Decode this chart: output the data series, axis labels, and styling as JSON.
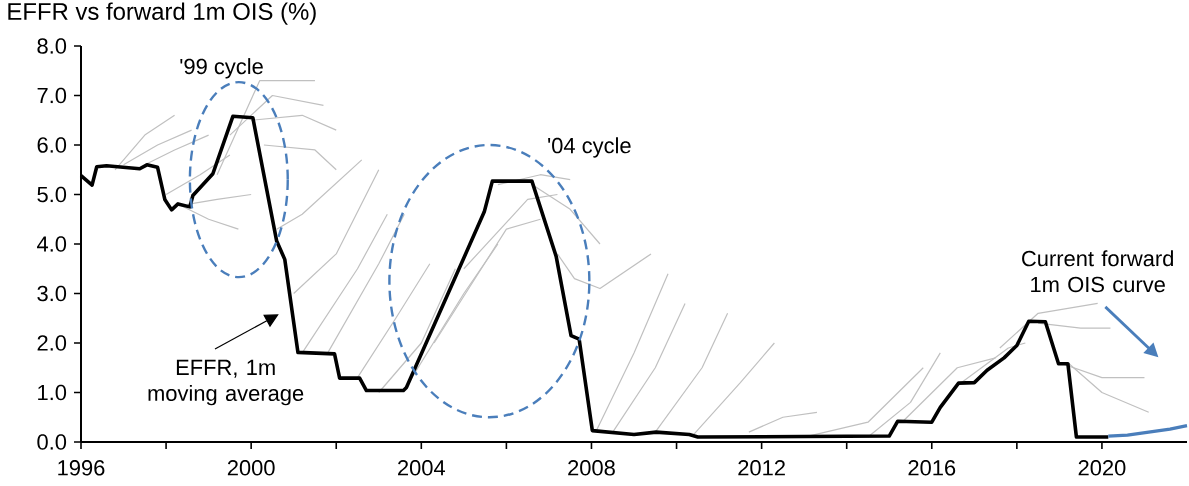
{
  "chart_data": {
    "type": "line",
    "title": "EFFR vs forward 1m OIS (%)",
    "annotations": [
      "'99 cycle",
      "'04 cycle",
      "EFFR, 1m moving average",
      "Current forward 1m OIS curve"
    ],
    "xlim": [
      1996,
      2022
    ],
    "ylim": [
      0,
      8
    ],
    "xticks": [
      1996,
      {
        "value": 1998,
        "label": null
      },
      2000,
      {
        "value": 2002,
        "label": null
      },
      2004,
      {
        "value": 2006,
        "label": null
      },
      2008,
      {
        "value": 2010,
        "label": null
      },
      2012,
      {
        "value": 2014,
        "label": null
      },
      2016,
      {
        "value": 2018,
        "label": null
      },
      2020
    ],
    "yticks": [
      {
        "value": 0,
        "label": "0.0"
      },
      {
        "value": 1,
        "label": "1.0"
      },
      {
        "value": 2,
        "label": "2.0"
      },
      {
        "value": 3,
        "label": "3.0"
      },
      {
        "value": 4,
        "label": "4.0"
      },
      {
        "value": 5,
        "label": "5.0"
      },
      {
        "value": 6,
        "label": "6.0"
      },
      {
        "value": 7,
        "label": "7.0"
      },
      {
        "value": 8,
        "label": "8.0"
      }
    ],
    "marker": "none",
    "series": [
      {
        "color": "#c0c0c0",
        "x": [
          1996.8,
          1997.5,
          1998.2
        ],
        "values": [
          5.5,
          6.2,
          6.6
        ]
      },
      {
        "color": "#c0c0c0",
        "x": [
          1997.0,
          1997.8,
          1998.6
        ],
        "values": [
          5.6,
          6.0,
          6.3
        ]
      },
      {
        "color": "#c0c0c0",
        "x": [
          1997.5,
          1998.2,
          1999.0
        ],
        "values": [
          5.6,
          5.9,
          6.2
        ]
      },
      {
        "color": "#c0c0c0",
        "x": [
          1998.0,
          1998.8,
          1999.5
        ],
        "values": [
          5.0,
          5.4,
          5.8
        ]
      },
      {
        "color": "#c0c0c0",
        "x": [
          1998.3,
          1999.0,
          1999.7
        ],
        "values": [
          4.8,
          4.5,
          4.3
        ]
      },
      {
        "color": "#c0c0c0",
        "x": [
          1998.5,
          1999.2,
          2000.0
        ],
        "values": [
          4.8,
          4.9,
          5.0
        ]
      },
      {
        "color": "#c0c0c0",
        "x": [
          1999.2,
          2000.2,
          2001.5
        ],
        "values": [
          5.4,
          7.3,
          7.3
        ]
      },
      {
        "color": "#c0c0c0",
        "x": [
          1999.5,
          2000.5,
          2001.7
        ],
        "values": [
          6.2,
          7.0,
          6.8
        ]
      },
      {
        "color": "#c0c0c0",
        "x": [
          2000.0,
          2001.2,
          2002.0
        ],
        "values": [
          6.5,
          6.6,
          6.3
        ]
      },
      {
        "color": "#c0c0c0",
        "x": [
          2000.3,
          2001.5,
          2002.0
        ],
        "values": [
          6.0,
          5.9,
          5.5
        ]
      },
      {
        "color": "#c0c0c0",
        "x": [
          2000.6,
          2001.2,
          2002.6
        ],
        "values": [
          4.3,
          4.6,
          5.7
        ]
      },
      {
        "color": "#c0c0c0",
        "x": [
          2001.0,
          2002.0,
          2003.0
        ],
        "values": [
          3.0,
          3.8,
          5.5
        ]
      },
      {
        "color": "#c0c0c0",
        "x": [
          2001.2,
          2002.5,
          2003.2
        ],
        "values": [
          1.8,
          3.5,
          4.6
        ]
      },
      {
        "color": "#c0c0c0",
        "x": [
          2001.8,
          2003.0,
          2003.6
        ],
        "values": [
          1.8,
          3.6,
          4.6
        ]
      },
      {
        "color": "#c0c0c0",
        "x": [
          2002.5,
          2003.4,
          2004.2
        ],
        "values": [
          1.3,
          2.5,
          3.6
        ]
      },
      {
        "color": "#c0c0c0",
        "x": [
          2003.0,
          2004.0,
          2004.8
        ],
        "values": [
          1.0,
          2.0,
          3.5
        ]
      },
      {
        "color": "#c0c0c0",
        "x": [
          2003.6,
          2005.0,
          2005.8
        ],
        "values": [
          1.05,
          3.0,
          4.0
        ]
      },
      {
        "color": "#c0c0c0",
        "x": [
          2004.3,
          2006.0,
          2006.8
        ],
        "values": [
          2.0,
          4.3,
          4.5
        ]
      },
      {
        "color": "#c0c0c0",
        "x": [
          2005.0,
          2006.5,
          2007.2
        ],
        "values": [
          3.5,
          4.9,
          5.0
        ]
      },
      {
        "color": "#c0c0c0",
        "x": [
          2005.8,
          2006.8,
          2007.5
        ],
        "values": [
          5.2,
          5.4,
          5.3
        ]
      },
      {
        "color": "#c0c0c0",
        "x": [
          2006.6,
          2007.5,
          2008.2
        ],
        "values": [
          5.2,
          4.7,
          4.0
        ]
      },
      {
        "color": "#c0c0c0",
        "x": [
          2007.2,
          2007.6,
          2008.2,
          2009.4
        ],
        "values": [
          3.8,
          3.3,
          3.1,
          3.8
        ]
      },
      {
        "color": "#c0c0c0",
        "x": [
          2008.1,
          2009.0,
          2009.8
        ],
        "values": [
          0.2,
          1.8,
          3.4
        ]
      },
      {
        "color": "#c0c0c0",
        "x": [
          2008.5,
          2009.5,
          2010.2
        ],
        "values": [
          0.2,
          1.5,
          2.8
        ]
      },
      {
        "color": "#c0c0c0",
        "x": [
          2009.5,
          2010.6,
          2011.2
        ],
        "values": [
          0.2,
          1.5,
          2.6
        ]
      },
      {
        "color": "#c0c0c0",
        "x": [
          2010.4,
          2011.5,
          2012.3
        ],
        "values": [
          0.15,
          1.2,
          2.0
        ]
      },
      {
        "color": "#c0c0c0",
        "x": [
          2011.7,
          2012.5,
          2013.3
        ],
        "values": [
          0.2,
          0.5,
          0.6
        ]
      },
      {
        "color": "#c0c0c0",
        "x": [
          2013.0,
          2014.5,
          2015.8
        ],
        "values": [
          0.1,
          0.4,
          1.5
        ]
      },
      {
        "color": "#c0c0c0",
        "x": [
          2014.5,
          2015.5,
          2016.2
        ],
        "values": [
          0.1,
          0.8,
          1.8
        ]
      },
      {
        "color": "#c0c0c0",
        "x": [
          2015.3,
          2016.6,
          2017.5
        ],
        "values": [
          0.4,
          1.5,
          1.7
        ]
      },
      {
        "color": "#c0c0c0",
        "x": [
          2016.7,
          2017.8,
          2018.2
        ],
        "values": [
          1.2,
          1.9,
          2.0
        ]
      },
      {
        "color": "#c0c0c0",
        "x": [
          2017.6,
          2018.5,
          2019.9
        ],
        "values": [
          1.9,
          2.6,
          2.8
        ]
      },
      {
        "color": "#c0c0c0",
        "x": [
          2018.5,
          2019.5,
          2020.2
        ],
        "values": [
          2.4,
          2.3,
          2.3
        ]
      },
      {
        "color": "#c0c0c0",
        "x": [
          2019.0,
          2020.0,
          2021.0
        ],
        "values": [
          1.6,
          1.3,
          1.3
        ]
      },
      {
        "color": "#c0c0c0",
        "x": [
          2019.2,
          2020.0,
          2021.1
        ],
        "values": [
          1.6,
          1.0,
          0.6
        ]
      },
      {
        "color": "#000000",
        "x": [
          1996.0,
          1996.26,
          1996.37,
          1996.6,
          1997.38,
          1997.55,
          1997.8,
          1997.97,
          1998.13,
          1998.28,
          1998.56,
          1998.63,
          1999.1,
          1999.57,
          2000.04,
          2000.6,
          2000.79,
          2001.1,
          2001.96,
          2002.08,
          2002.55,
          2002.71,
          2003.58,
          2003.65,
          2005.48,
          2005.67,
          2006.6,
          2007.17,
          2007.52,
          2007.71,
          2008.02,
          2009.0,
          2009.52,
          2010.3,
          2010.5,
          2015.0,
          2015.2,
          2016.0,
          2016.2,
          2016.63,
          2017.0,
          2017.3,
          2017.7,
          2018.0,
          2018.28,
          2018.67,
          2018.98,
          2019.2,
          2019.4,
          2020.15
        ],
        "values": [
          5.38,
          5.19,
          5.56,
          5.58,
          5.52,
          5.6,
          5.55,
          4.9,
          4.69,
          4.81,
          4.75,
          4.98,
          5.42,
          6.58,
          6.55,
          4.06,
          3.69,
          1.81,
          1.78,
          1.29,
          1.29,
          1.04,
          1.04,
          1.1,
          4.65,
          5.27,
          5.27,
          3.75,
          2.15,
          2.08,
          0.23,
          0.15,
          0.2,
          0.15,
          0.1,
          0.12,
          0.42,
          0.4,
          0.7,
          1.19,
          1.2,
          1.45,
          1.7,
          1.95,
          2.44,
          2.43,
          1.58,
          1.58,
          0.1,
          0.1
        ]
      },
      {
        "color": "#4a7ebb",
        "x": [
          2020.15,
          2020.6,
          2021.1,
          2021.6,
          2022.0
        ],
        "values": [
          0.12,
          0.14,
          0.2,
          0.26,
          0.33
        ]
      }
    ]
  }
}
